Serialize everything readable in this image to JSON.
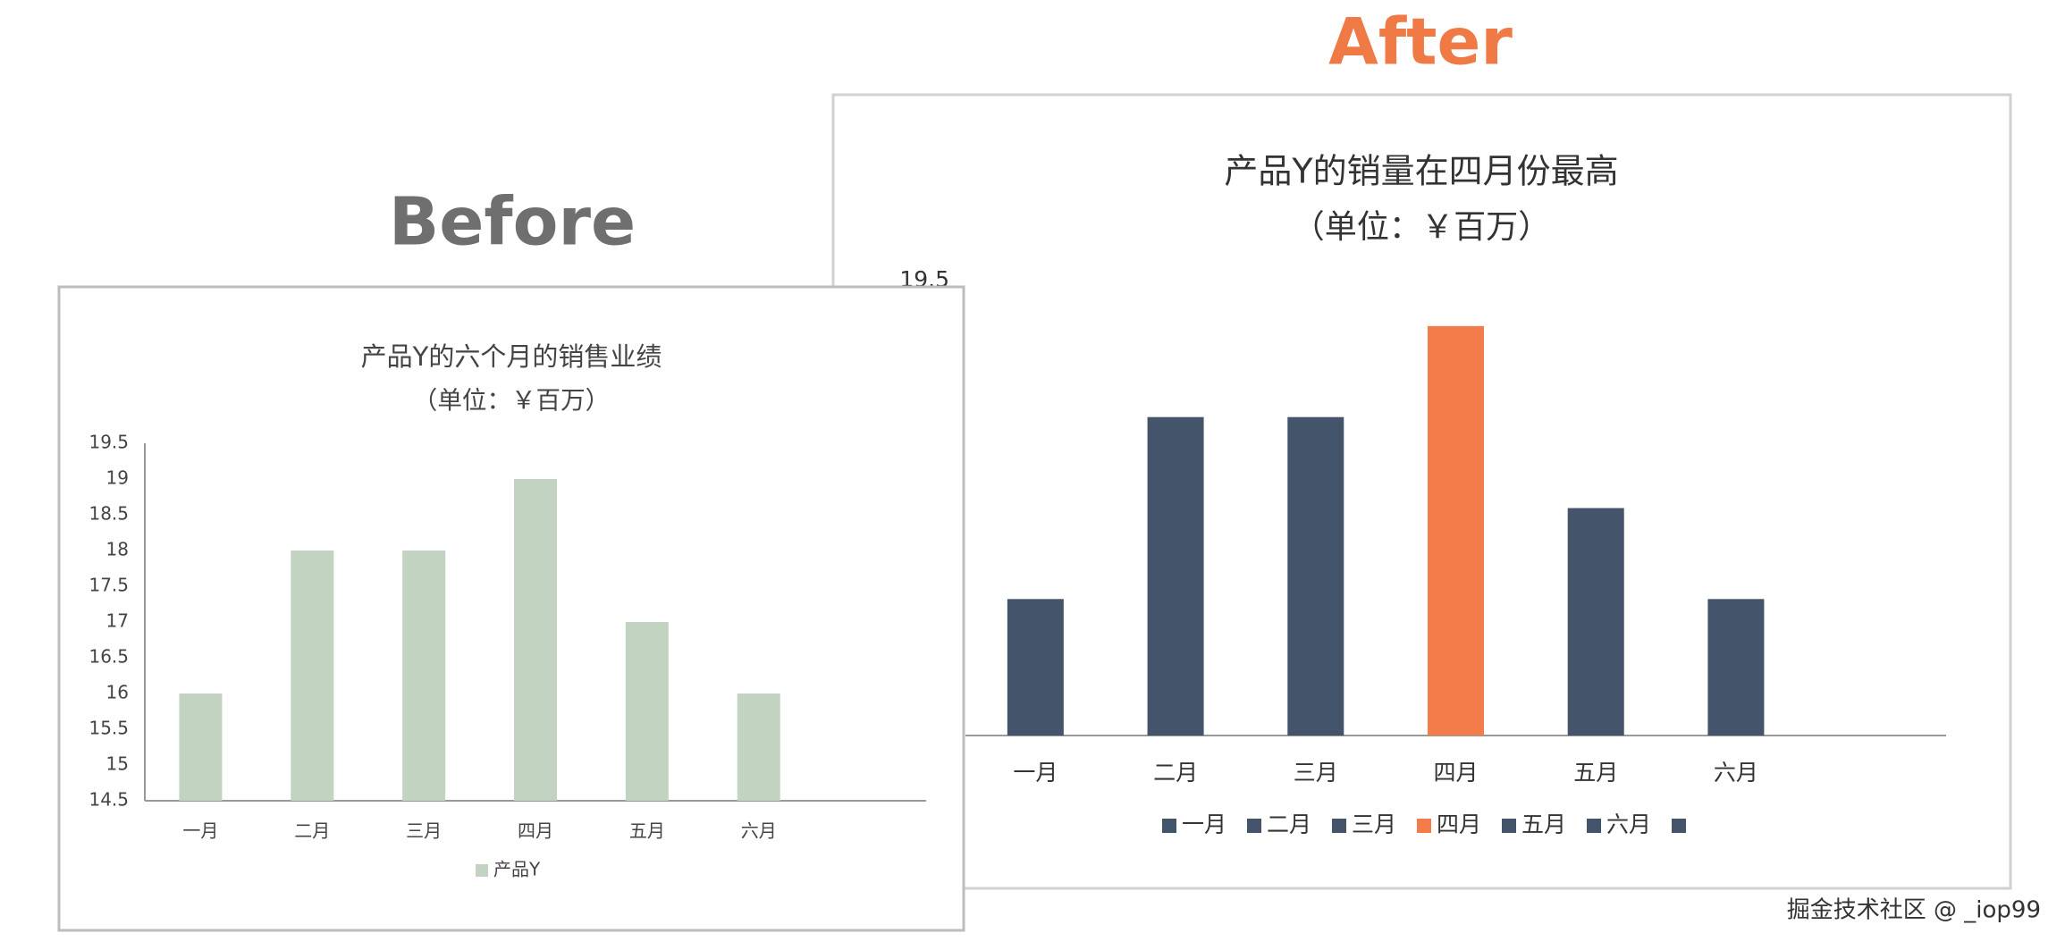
{
  "labels": {
    "before": "Before",
    "after": "After",
    "watermark": "掘金技术社区 @ _iop99"
  },
  "chart_data": [
    {
      "type": "bar",
      "title": "产品Y的六个月的销售业绩",
      "subtitle": "（单位：￥百万）",
      "categories": [
        "一月",
        "二月",
        "三月",
        "四月",
        "五月",
        "六月"
      ],
      "series": [
        {
          "name": "产品Y",
          "color": "#c3d3c1",
          "values": [
            16,
            18,
            18,
            19,
            17,
            16
          ]
        }
      ],
      "ylim": [
        14.5,
        19.5
      ],
      "yticks": [
        14.5,
        15,
        15.5,
        16,
        16.5,
        17,
        17.5,
        18,
        18.5,
        19,
        19.5
      ],
      "grid": false,
      "legend": "bottom"
    },
    {
      "type": "bar",
      "title": "产品Y的销量在四月份最高",
      "subtitle": "（单位：￥百万）",
      "categories": [
        "一月",
        "二月",
        "三月",
        "四月",
        "五月",
        "六月"
      ],
      "values": [
        16,
        18,
        18,
        19,
        17,
        16
      ],
      "colors": [
        "#44546a",
        "#44546a",
        "#44546a",
        "#f47c4a",
        "#44546a",
        "#44546a"
      ],
      "ylim": [
        14.5,
        19.5
      ],
      "yticks": [
        19.5
      ],
      "grid": false,
      "legend": "bottom"
    }
  ]
}
